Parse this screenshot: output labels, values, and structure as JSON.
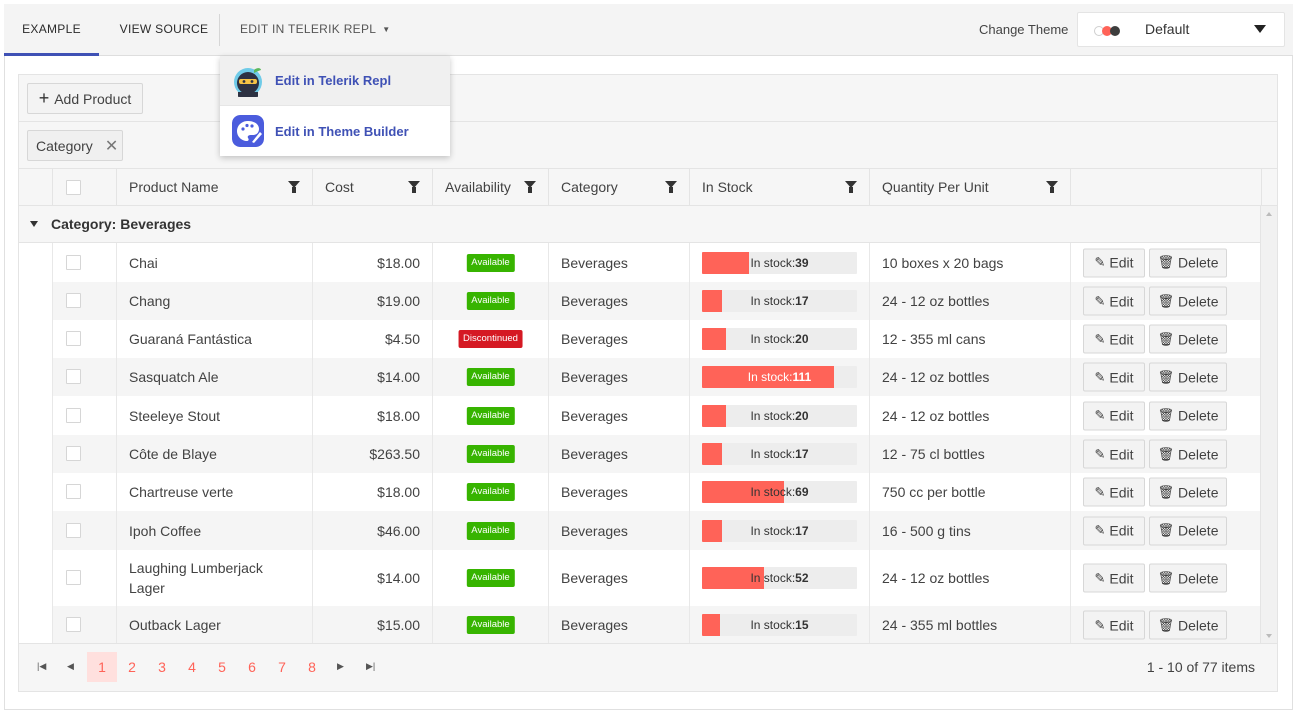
{
  "topbar": {
    "tabs": [
      "EXAMPLE",
      "VIEW SOURCE",
      "EDIT IN TELERIK REPL"
    ],
    "theme_label": "Change Theme",
    "theme_value": "Default",
    "theme_colors": [
      "#ffffff",
      "#ff6358",
      "#3d3d3d"
    ]
  },
  "popup": {
    "items": [
      {
        "label": "Edit in Telerik Repl",
        "icon": "ninja-icon"
      },
      {
        "label": "Edit in Theme Builder",
        "icon": "palette-icon"
      }
    ]
  },
  "toolbar": {
    "add_label": "Add Product"
  },
  "grouping": {
    "chip_label": "Category"
  },
  "columns": [
    "Product Name",
    "Cost",
    "Availability",
    "Category",
    "In Stock",
    "Quantity Per Unit"
  ],
  "group": {
    "label": "Category: Beverages"
  },
  "rows": [
    {
      "name": "Chai",
      "cost": "$18.00",
      "availability": "Available",
      "category": "Beverages",
      "stock": 39,
      "qty": "10 boxes x 20 bags"
    },
    {
      "name": "Chang",
      "cost": "$19.00",
      "availability": "Available",
      "category": "Beverages",
      "stock": 17,
      "qty": "24 - 12 oz bottles"
    },
    {
      "name": "Guaraná Fantástica",
      "cost": "$4.50",
      "availability": "Discontinued",
      "category": "Beverages",
      "stock": 20,
      "qty": "12 - 355 ml cans"
    },
    {
      "name": "Sasquatch Ale",
      "cost": "$14.00",
      "availability": "Available",
      "category": "Beverages",
      "stock": 111,
      "qty": "24 - 12 oz bottles"
    },
    {
      "name": "Steeleye Stout",
      "cost": "$18.00",
      "availability": "Available",
      "category": "Beverages",
      "stock": 20,
      "qty": "24 - 12 oz bottles"
    },
    {
      "name": "Côte de Blaye",
      "cost": "$263.50",
      "availability": "Available",
      "category": "Beverages",
      "stock": 17,
      "qty": "12 - 75 cl bottles"
    },
    {
      "name": "Chartreuse verte",
      "cost": "$18.00",
      "availability": "Available",
      "category": "Beverages",
      "stock": 69,
      "qty": "750 cc per bottle"
    },
    {
      "name": "Ipoh Coffee",
      "cost": "$46.00",
      "availability": "Available",
      "category": "Beverages",
      "stock": 17,
      "qty": "16 - 500 g tins"
    },
    {
      "name": "Laughing Lumberjack Lager",
      "cost": "$14.00",
      "availability": "Available",
      "category": "Beverages",
      "stock": 52,
      "qty": "24 - 12 oz bottles"
    },
    {
      "name": "Outback Lager",
      "cost": "$15.00",
      "availability": "Available",
      "category": "Beverages",
      "stock": 15,
      "qty": "24 - 355 ml bottles"
    }
  ],
  "stock_prefix": "In stock:",
  "actions": {
    "edit": "Edit",
    "delete": "Delete"
  },
  "pager": {
    "pages": [
      "1",
      "2",
      "3",
      "4",
      "5",
      "6",
      "7",
      "8"
    ],
    "current": "1",
    "info": "1 - 10 of 77 items"
  },
  "colors": {
    "accent": "#ff6358",
    "available": "#37b400",
    "discontinued": "#d51923",
    "link": "#3f51b5"
  }
}
